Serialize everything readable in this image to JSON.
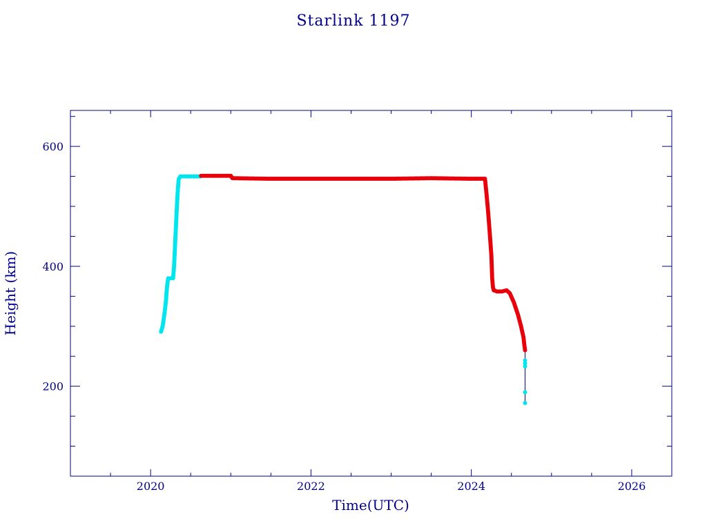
{
  "chart_data": {
    "type": "scatter",
    "title": "Starlink 1197",
    "xlabel": "Time(UTC)",
    "ylabel": "Height (km)",
    "xlim": [
      2019.0,
      2026.5
    ],
    "ylim": [
      50,
      660
    ],
    "x_ticks": [
      2020,
      2022,
      2024,
      2026
    ],
    "x_tick_labels": [
      "2020",
      "2022",
      "2024",
      "2026"
    ],
    "y_ticks": [
      200,
      400,
      600
    ],
    "y_tick_labels": [
      "200",
      "400",
      "600"
    ],
    "x_minor_step": 0.5,
    "y_minor_step": 50,
    "colors": {
      "axis": "#00008b",
      "cyan": "#00e5ee",
      "red": "#e8000b",
      "connector": "#00008b"
    },
    "series": [
      {
        "color": "cyan",
        "points": [
          [
            2020.13,
            291
          ],
          [
            2020.15,
            300
          ],
          [
            2020.17,
            318
          ],
          [
            2020.19,
            340
          ],
          [
            2020.2,
            358
          ],
          [
            2020.21,
            372
          ],
          [
            2020.22,
            380
          ],
          [
            2020.25,
            380
          ],
          [
            2020.28,
            380
          ],
          [
            2020.29,
            395
          ],
          [
            2020.3,
            420
          ],
          [
            2020.31,
            450
          ],
          [
            2020.32,
            478
          ],
          [
            2020.33,
            505
          ],
          [
            2020.34,
            528
          ],
          [
            2020.35,
            545
          ],
          [
            2020.37,
            550
          ],
          [
            2020.42,
            550
          ],
          [
            2020.5,
            550
          ],
          [
            2020.58,
            550
          ],
          [
            2020.62,
            550
          ]
        ]
      },
      {
        "color": "red",
        "points": [
          [
            2020.63,
            551
          ],
          [
            2020.8,
            551
          ],
          [
            2021.0,
            551
          ],
          [
            2021.02,
            547
          ],
          [
            2021.5,
            546
          ],
          [
            2022.0,
            546
          ],
          [
            2022.5,
            546
          ],
          [
            2023.0,
            546
          ],
          [
            2023.5,
            547
          ],
          [
            2024.0,
            546
          ],
          [
            2024.17,
            546
          ],
          [
            2024.19,
            520
          ],
          [
            2024.21,
            490
          ],
          [
            2024.23,
            455
          ],
          [
            2024.25,
            418
          ],
          [
            2024.26,
            380
          ],
          [
            2024.27,
            365
          ],
          [
            2024.28,
            360
          ],
          [
            2024.32,
            358
          ],
          [
            2024.38,
            358
          ],
          [
            2024.44,
            360
          ],
          [
            2024.48,
            355
          ],
          [
            2024.53,
            340
          ],
          [
            2024.58,
            320
          ],
          [
            2024.62,
            300
          ],
          [
            2024.65,
            282
          ],
          [
            2024.66,
            270
          ],
          [
            2024.67,
            260
          ]
        ]
      },
      {
        "color": "cyan",
        "points": [
          [
            2024.67,
            243
          ],
          [
            2024.67,
            238
          ],
          [
            2024.67,
            233
          ],
          [
            2024.67,
            190
          ],
          [
            2024.67,
            172
          ]
        ]
      }
    ]
  }
}
